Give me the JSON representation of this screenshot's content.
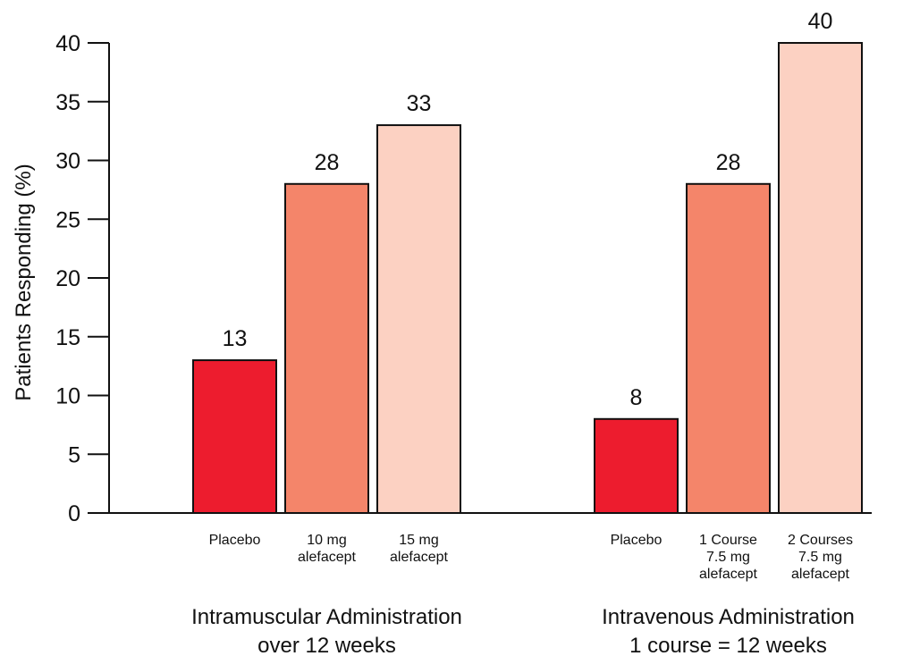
{
  "chart_data": {
    "type": "bar",
    "ylabel": "Patients Responding (%)",
    "ylim": [
      0,
      40
    ],
    "yticks": [
      0,
      5,
      10,
      15,
      20,
      25,
      30,
      35,
      40
    ],
    "grid": false,
    "colors": {
      "placebo": "#ed1c2e",
      "dose_low": "#f4856a",
      "dose_high": "#fcd1c2",
      "outline": "#111111"
    },
    "groups": [
      {
        "title": [
          "Intramuscular Administration",
          "over 12 weeks"
        ],
        "bars": [
          {
            "label": [
              "Placebo"
            ],
            "value": 13,
            "color": "#ed1c2e"
          },
          {
            "label": [
              "10 mg",
              "alefacept"
            ],
            "value": 28,
            "color": "#f4856a"
          },
          {
            "label": [
              "15 mg",
              "alefacept"
            ],
            "value": 33,
            "color": "#fcd1c2"
          }
        ]
      },
      {
        "title": [
          "Intravenous Administration",
          "1 course = 12 weeks"
        ],
        "bars": [
          {
            "label": [
              "Placebo"
            ],
            "value": 8,
            "color": "#ed1c2e"
          },
          {
            "label": [
              "1 Course",
              "7.5 mg",
              "alefacept"
            ],
            "value": 28,
            "color": "#f4856a"
          },
          {
            "label": [
              "2 Courses",
              "7.5 mg",
              "alefacept"
            ],
            "value": 40,
            "color": "#fcd1c2"
          }
        ]
      }
    ]
  }
}
